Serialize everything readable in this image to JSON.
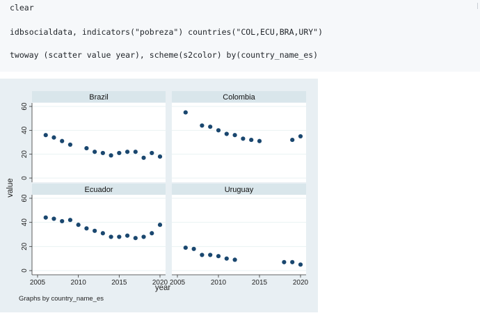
{
  "code_cell": {
    "lines": [
      "clear",
      "idbsocialdata, indicators(\"pobreza\") countries(\"COL,ECU,BRA,URY\")",
      "twoway (scatter value year), scheme(s2color) by(country_name_es)"
    ]
  },
  "graph": {
    "footnote": "Graphs by country_name_es",
    "colors": {
      "outer_background": "#e8eff3",
      "plot_background": "#ffffff",
      "panel_header": "#d9e6eb",
      "marker": "#1a476f",
      "grid": "#eaf2f3"
    }
  },
  "chart_data": {
    "type": "scatter",
    "xlabel": "year",
    "ylabel": "value",
    "xlim": [
      2005,
      2020
    ],
    "ylim": [
      0,
      60
    ],
    "x_ticks": [
      2005,
      2010,
      2015,
      2020
    ],
    "y_ticks": [
      0,
      20,
      40,
      60
    ],
    "grid": true,
    "panels": [
      {
        "title": "Brazil",
        "points": [
          {
            "x": 2006,
            "y": 36
          },
          {
            "x": 2007,
            "y": 34
          },
          {
            "x": 2008,
            "y": 31
          },
          {
            "x": 2009,
            "y": 28
          },
          {
            "x": 2011,
            "y": 25
          },
          {
            "x": 2012,
            "y": 22
          },
          {
            "x": 2013,
            "y": 21
          },
          {
            "x": 2014,
            "y": 19
          },
          {
            "x": 2015,
            "y": 21
          },
          {
            "x": 2016,
            "y": 22
          },
          {
            "x": 2017,
            "y": 22
          },
          {
            "x": 2018,
            "y": 17
          },
          {
            "x": 2019,
            "y": 21
          },
          {
            "x": 2020,
            "y": 18
          }
        ]
      },
      {
        "title": "Colombia",
        "points": [
          {
            "x": 2006,
            "y": 55
          },
          {
            "x": 2008,
            "y": 44
          },
          {
            "x": 2009,
            "y": 43
          },
          {
            "x": 2010,
            "y": 40
          },
          {
            "x": 2011,
            "y": 37
          },
          {
            "x": 2012,
            "y": 36
          },
          {
            "x": 2013,
            "y": 33
          },
          {
            "x": 2014,
            "y": 32
          },
          {
            "x": 2015,
            "y": 31
          },
          {
            "x": 2019,
            "y": 32
          },
          {
            "x": 2020,
            "y": 35
          }
        ]
      },
      {
        "title": "Ecuador",
        "points": [
          {
            "x": 2006,
            "y": 44
          },
          {
            "x": 2007,
            "y": 43
          },
          {
            "x": 2008,
            "y": 41
          },
          {
            "x": 2009,
            "y": 42
          },
          {
            "x": 2010,
            "y": 38
          },
          {
            "x": 2011,
            "y": 35
          },
          {
            "x": 2012,
            "y": 33
          },
          {
            "x": 2013,
            "y": 31
          },
          {
            "x": 2014,
            "y": 28
          },
          {
            "x": 2015,
            "y": 28
          },
          {
            "x": 2016,
            "y": 29
          },
          {
            "x": 2017,
            "y": 27
          },
          {
            "x": 2018,
            "y": 28
          },
          {
            "x": 2019,
            "y": 31
          },
          {
            "x": 2020,
            "y": 38
          }
        ]
      },
      {
        "title": "Uruguay",
        "points": [
          {
            "x": 2006,
            "y": 19
          },
          {
            "x": 2007,
            "y": 18
          },
          {
            "x": 2008,
            "y": 13
          },
          {
            "x": 2009,
            "y": 13
          },
          {
            "x": 2010,
            "y": 12
          },
          {
            "x": 2011,
            "y": 10
          },
          {
            "x": 2012,
            "y": 9
          },
          {
            "x": 2018,
            "y": 7
          },
          {
            "x": 2019,
            "y": 7
          },
          {
            "x": 2020,
            "y": 5
          }
        ]
      }
    ]
  }
}
